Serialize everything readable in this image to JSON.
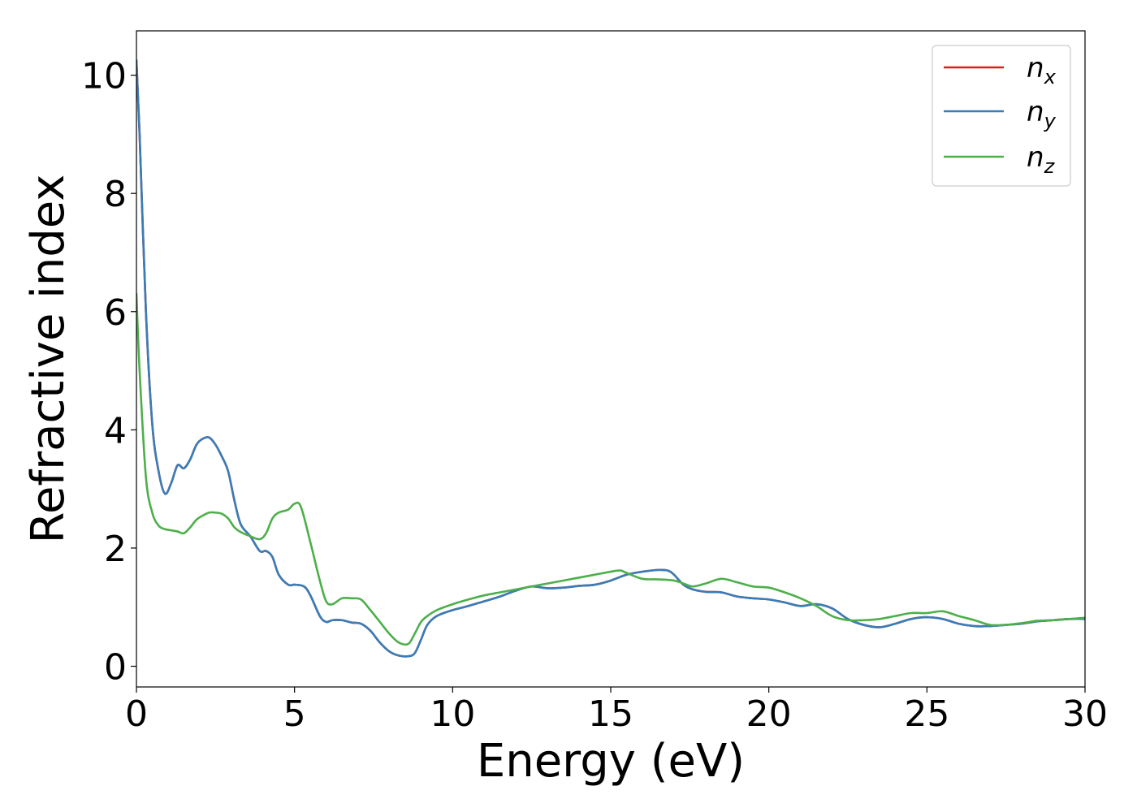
{
  "chart_data": {
    "type": "line",
    "title": "",
    "xlabel": "Energy (eV)",
    "ylabel": "Refractive index",
    "xlim": [
      0,
      30
    ],
    "ylim": [
      -0.35,
      10.75
    ],
    "xticks": [
      0,
      5,
      10,
      15,
      20,
      25,
      30
    ],
    "yticks": [
      0,
      2,
      4,
      6,
      8,
      10
    ],
    "grid": false,
    "legend_position": "top-right",
    "series": [
      {
        "name": "n_x",
        "legend_base": "n",
        "legend_sub": "x",
        "color": "#e41a1c",
        "x": [
          0,
          0.1,
          0.3,
          0.5,
          0.7,
          0.9,
          1.1,
          1.3,
          1.5,
          1.7,
          1.9,
          2.1,
          2.3,
          2.5,
          2.7,
          2.9,
          3.1,
          3.3,
          3.6,
          3.9,
          4.1,
          4.3,
          4.5,
          4.8,
          5.0,
          5.3,
          5.5,
          5.8,
          6.0,
          6.2,
          6.5,
          6.8,
          7.1,
          7.4,
          7.7,
          8.0,
          8.3,
          8.6,
          8.8,
          9.0,
          9.2,
          9.5,
          10.0,
          10.5,
          11.0,
          11.5,
          12.0,
          12.5,
          13.0,
          13.5,
          14.0,
          14.5,
          15.0,
          15.5,
          16.0,
          16.5,
          16.8,
          17.0,
          17.3,
          17.6,
          18.0,
          18.5,
          19.0,
          19.5,
          20.0,
          20.5,
          21.0,
          21.5,
          22.0,
          22.5,
          23.0,
          23.5,
          24.0,
          24.5,
          25.0,
          25.5,
          26.0,
          26.5,
          27.0,
          27.5,
          28.0,
          28.5,
          29.0,
          29.5,
          30.0
        ],
        "y": [
          10.25,
          9.0,
          6.0,
          4.1,
          3.3,
          2.92,
          3.1,
          3.4,
          3.35,
          3.5,
          3.75,
          3.85,
          3.87,
          3.75,
          3.55,
          3.3,
          2.8,
          2.4,
          2.2,
          1.95,
          1.95,
          1.85,
          1.55,
          1.38,
          1.38,
          1.35,
          1.2,
          0.85,
          0.75,
          0.78,
          0.78,
          0.74,
          0.72,
          0.6,
          0.4,
          0.25,
          0.18,
          0.17,
          0.22,
          0.45,
          0.7,
          0.85,
          0.95,
          1.02,
          1.1,
          1.18,
          1.28,
          1.35,
          1.32,
          1.33,
          1.36,
          1.38,
          1.45,
          1.55,
          1.6,
          1.63,
          1.62,
          1.55,
          1.38,
          1.3,
          1.26,
          1.25,
          1.18,
          1.15,
          1.13,
          1.08,
          1.02,
          1.05,
          0.98,
          0.8,
          0.7,
          0.66,
          0.72,
          0.8,
          0.83,
          0.8,
          0.72,
          0.68,
          0.68,
          0.7,
          0.72,
          0.76,
          0.78,
          0.8,
          0.8
        ]
      },
      {
        "name": "n_y",
        "legend_base": "n",
        "legend_sub": "y",
        "color": "#377eb8",
        "x": [
          0,
          0.1,
          0.3,
          0.5,
          0.7,
          0.9,
          1.1,
          1.3,
          1.5,
          1.7,
          1.9,
          2.1,
          2.3,
          2.5,
          2.7,
          2.9,
          3.1,
          3.3,
          3.6,
          3.9,
          4.1,
          4.3,
          4.5,
          4.8,
          5.0,
          5.3,
          5.5,
          5.8,
          6.0,
          6.2,
          6.5,
          6.8,
          7.1,
          7.4,
          7.7,
          8.0,
          8.3,
          8.6,
          8.8,
          9.0,
          9.2,
          9.5,
          10.0,
          10.5,
          11.0,
          11.5,
          12.0,
          12.5,
          13.0,
          13.5,
          14.0,
          14.5,
          15.0,
          15.5,
          16.0,
          16.5,
          16.8,
          17.0,
          17.3,
          17.6,
          18.0,
          18.5,
          19.0,
          19.5,
          20.0,
          20.5,
          21.0,
          21.5,
          22.0,
          22.5,
          23.0,
          23.5,
          24.0,
          24.5,
          25.0,
          25.5,
          26.0,
          26.5,
          27.0,
          27.5,
          28.0,
          28.5,
          29.0,
          29.5,
          30.0
        ],
        "y": [
          10.25,
          9.0,
          6.0,
          4.1,
          3.3,
          2.92,
          3.1,
          3.4,
          3.35,
          3.5,
          3.75,
          3.85,
          3.87,
          3.75,
          3.55,
          3.3,
          2.8,
          2.4,
          2.2,
          1.95,
          1.95,
          1.85,
          1.55,
          1.38,
          1.38,
          1.35,
          1.2,
          0.85,
          0.75,
          0.78,
          0.78,
          0.74,
          0.72,
          0.6,
          0.4,
          0.25,
          0.18,
          0.17,
          0.22,
          0.45,
          0.7,
          0.85,
          0.95,
          1.02,
          1.1,
          1.18,
          1.28,
          1.35,
          1.32,
          1.33,
          1.36,
          1.38,
          1.45,
          1.55,
          1.6,
          1.63,
          1.62,
          1.55,
          1.38,
          1.3,
          1.26,
          1.25,
          1.18,
          1.15,
          1.13,
          1.08,
          1.02,
          1.05,
          0.98,
          0.8,
          0.7,
          0.66,
          0.72,
          0.8,
          0.83,
          0.8,
          0.72,
          0.68,
          0.68,
          0.7,
          0.72,
          0.76,
          0.78,
          0.8,
          0.8
        ]
      },
      {
        "name": "n_z",
        "legend_base": "n",
        "legend_sub": "z",
        "color": "#4daf4a",
        "x": [
          0,
          0.1,
          0.3,
          0.5,
          0.7,
          0.9,
          1.1,
          1.3,
          1.5,
          1.7,
          1.9,
          2.1,
          2.3,
          2.5,
          2.7,
          2.9,
          3.1,
          3.3,
          3.6,
          3.9,
          4.1,
          4.3,
          4.5,
          4.8,
          5.0,
          5.2,
          5.5,
          5.8,
          6.0,
          6.2,
          6.5,
          6.8,
          7.1,
          7.4,
          7.7,
          8.0,
          8.3,
          8.6,
          8.8,
          9.0,
          9.2,
          9.5,
          10.0,
          10.5,
          11.0,
          11.5,
          12.0,
          12.5,
          13.0,
          13.5,
          14.0,
          14.5,
          15.0,
          15.3,
          15.5,
          16.0,
          16.5,
          17.0,
          17.3,
          17.6,
          18.0,
          18.5,
          19.0,
          19.5,
          20.0,
          20.5,
          21.0,
          21.5,
          22.0,
          22.5,
          23.0,
          23.5,
          24.0,
          24.5,
          25.0,
          25.5,
          26.0,
          26.5,
          27.0,
          27.5,
          28.0,
          28.5,
          29.0,
          29.5,
          30.0
        ],
        "y": [
          6.3,
          5.0,
          3.2,
          2.6,
          2.38,
          2.32,
          2.3,
          2.28,
          2.25,
          2.35,
          2.48,
          2.55,
          2.6,
          2.6,
          2.58,
          2.5,
          2.35,
          2.27,
          2.2,
          2.15,
          2.25,
          2.5,
          2.6,
          2.65,
          2.75,
          2.7,
          2.1,
          1.45,
          1.1,
          1.05,
          1.15,
          1.15,
          1.13,
          0.95,
          0.75,
          0.55,
          0.4,
          0.38,
          0.55,
          0.75,
          0.85,
          0.95,
          1.05,
          1.13,
          1.2,
          1.25,
          1.3,
          1.35,
          1.4,
          1.45,
          1.5,
          1.55,
          1.6,
          1.62,
          1.58,
          1.48,
          1.47,
          1.45,
          1.4,
          1.35,
          1.4,
          1.48,
          1.42,
          1.35,
          1.33,
          1.25,
          1.15,
          1.02,
          0.85,
          0.78,
          0.78,
          0.8,
          0.85,
          0.9,
          0.9,
          0.93,
          0.85,
          0.78,
          0.7,
          0.7,
          0.73,
          0.77,
          0.78,
          0.8,
          0.82
        ]
      }
    ]
  }
}
